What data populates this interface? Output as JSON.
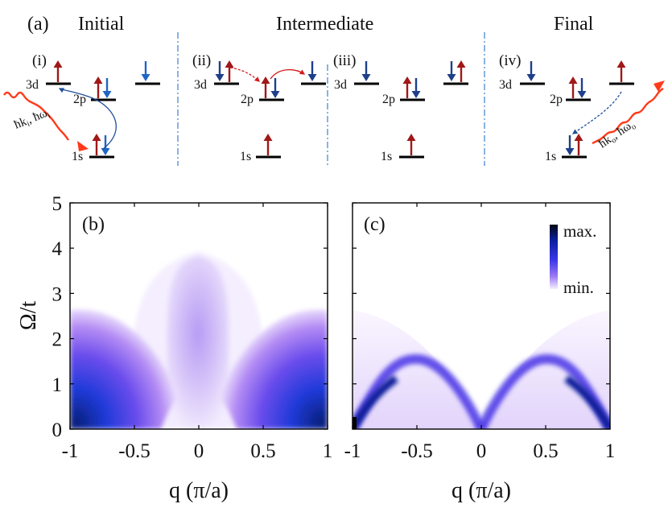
{
  "panel_a": {
    "label": "(a)",
    "stages": [
      "Initial",
      "Intermediate",
      "Final"
    ],
    "subpanels": [
      "(i)",
      "(ii)",
      "(iii)",
      "(iv)"
    ],
    "levels": {
      "d": "3d",
      "p": "2p",
      "s": "1s"
    },
    "photon_in": "ħk",
    "photon_in_sub": "i",
    "photon_in_omega": "ħω",
    "photon_in_omega_sub": "i",
    "photon_out": "ħk",
    "photon_out_sub": "o",
    "photon_out_omega": "ħω",
    "photon_out_omega_sub": "o"
  },
  "colors": {
    "spin_up": "#a01818",
    "spin_down_dark": "#1e3f8a",
    "spin_down_light": "#1f66c4",
    "photon": "#ff3a1a",
    "transition": "#1f4f9a",
    "hop": "#d41a1a",
    "map_max": "#0a1a6a",
    "map_mid": "#3a30e0",
    "map_low": "#a070f0",
    "map_min": "#f2e8ff"
  },
  "chart_data": [
    {
      "type": "heatmap",
      "panel": "(b)",
      "xlabel": "q (π/a)",
      "ylabel": "Ω/t",
      "xlim": [
        -1,
        1
      ],
      "ylim": [
        0,
        5
      ],
      "xticks": [
        "-1",
        "-0.5",
        "0",
        "0.5",
        "1"
      ],
      "yticks": [
        "0",
        "1",
        "2",
        "3",
        "4",
        "5"
      ],
      "features": [
        {
          "name": "left-lobe",
          "q_range": [
            -1,
            -0.35
          ],
          "omega_upper": 2.6,
          "intensity": "high"
        },
        {
          "name": "central-plume",
          "q_range": [
            -0.3,
            0.3
          ],
          "omega_upper": 3.9,
          "intensity": "low"
        },
        {
          "name": "right-lobe",
          "q_range": [
            0.35,
            1
          ],
          "omega_upper": 2.6,
          "intensity": "high"
        }
      ]
    },
    {
      "type": "heatmap",
      "panel": "(c)",
      "xlabel": "q (π/a)",
      "xlim": [
        -1,
        1
      ],
      "ylim": [
        0,
        5
      ],
      "xticks": [
        "-1",
        "-0.5",
        "0",
        "0.5",
        "1"
      ],
      "colorbar": {
        "max_label": "max.",
        "min_label": "min."
      },
      "features": [
        {
          "name": "magnon-dispersion",
          "peak_q": [
            -0.5,
            0.5
          ],
          "peak_omega": 1.35,
          "intensity": "high",
          "zero_at_q": [
            -1,
            0,
            1
          ]
        },
        {
          "name": "continuum",
          "q_range": [
            -1,
            1
          ],
          "omega_upper": 2.6,
          "intensity": "low"
        }
      ]
    }
  ]
}
